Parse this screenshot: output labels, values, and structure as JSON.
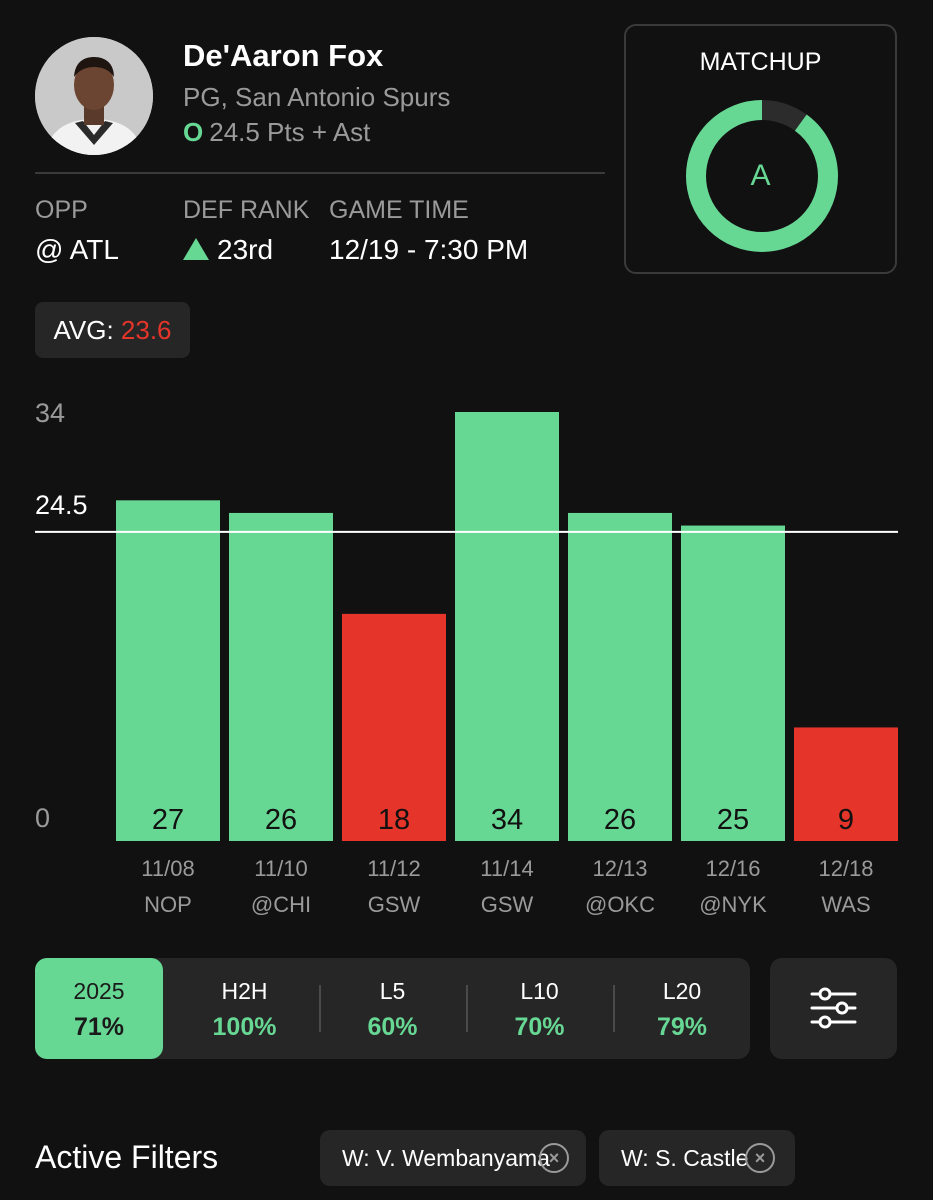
{
  "player": {
    "name": "De'Aaron Fox",
    "team": "PG, San Antonio Spurs",
    "side": "O",
    "prop": "24.5 Pts + Ast"
  },
  "info": {
    "opp_label": "OPP",
    "opp_value": "@ ATL",
    "def_rank_label": "DEF RANK",
    "def_rank_value": "23rd",
    "game_time_label": "GAME TIME",
    "game_time_value": "12/19 - 7:30 PM"
  },
  "matchup": {
    "title": "MATCHUP",
    "grade": "A",
    "fill_fraction": 0.9
  },
  "avg": {
    "label": "AVG:",
    "value": "23.6"
  },
  "chart_data": {
    "type": "bar",
    "categories": [
      "11/08 NOP",
      "11/10 @CHI",
      "11/12 GSW",
      "11/14 GSW",
      "12/13 @OKC",
      "12/16 @NYK",
      "12/18 WAS"
    ],
    "dates": [
      "11/08",
      "11/10",
      "11/12",
      "11/14",
      "12/13",
      "12/16",
      "12/18"
    ],
    "opponents": [
      "NOP",
      "@CHI",
      "GSW",
      "GSW",
      "@OKC",
      "@NYK",
      "WAS"
    ],
    "values": [
      27,
      26,
      18,
      34,
      26,
      25,
      9
    ],
    "value_labels": [
      "27",
      "26",
      "18",
      "34",
      "26",
      "25",
      "9"
    ],
    "ylim": [
      0,
      34
    ],
    "yticks": [
      "0",
      "34"
    ],
    "line": 24.5,
    "line_label": "24.5",
    "hit_color": "#67d794",
    "miss_color": "#e5342a",
    "line_color": "#ffffff"
  },
  "filters": {
    "segments": [
      {
        "label": "2025",
        "value": "71%",
        "active": true
      },
      {
        "label": "H2H",
        "value": "100%",
        "active": false
      },
      {
        "label": "L5",
        "value": "60%",
        "active": false
      },
      {
        "label": "L10",
        "value": "70%",
        "active": false
      },
      {
        "label": "L20",
        "value": "79%",
        "active": false
      }
    ],
    "settings_icon": "sliders-icon"
  },
  "active_filters": {
    "title": "Active Filters",
    "chips": [
      "W: V. Wembanyama",
      "W: S. Castle"
    ],
    "remove_icon": "x-circle-icon"
  },
  "colors": {
    "background": "#111111",
    "accent_green": "#67d794",
    "accent_red": "#e5342a",
    "card": "#262626",
    "muted": "#9a9a9a"
  }
}
